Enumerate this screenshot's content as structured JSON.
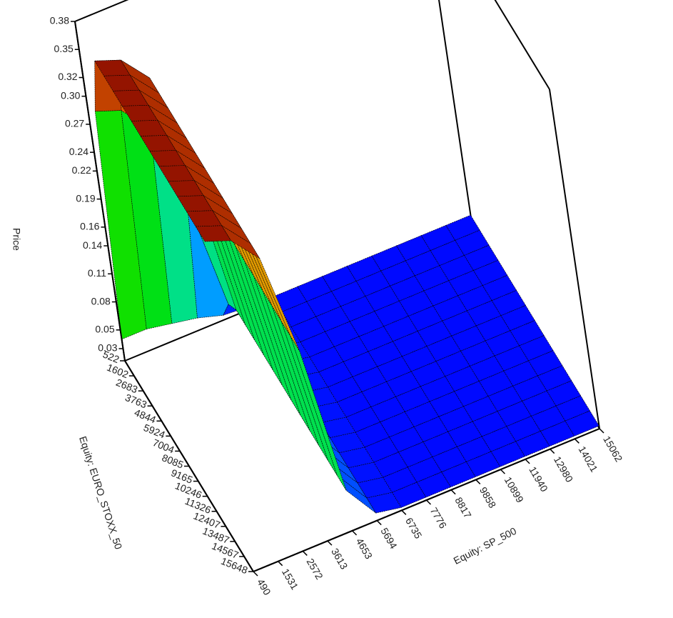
{
  "chart_data": {
    "type": "surface3d",
    "zlabel": "Price",
    "ylabel": "Equity: EURO_STOXX_50",
    "xlabel": "Equity: SP_500",
    "x": [
      490,
      1531,
      2572,
      3613,
      4653,
      5694,
      6735,
      7776,
      8817,
      9858,
      10899,
      11940,
      12980,
      14021,
      15062
    ],
    "y": [
      522,
      1602,
      2683,
      3763,
      4844,
      5924,
      7004,
      8085,
      9165,
      10246,
      11326,
      12407,
      13487,
      14567,
      15648
    ],
    "xlim": [
      490,
      15062
    ],
    "ylim": [
      522,
      15648
    ],
    "zlim": [
      0.017,
      0.38
    ],
    "xticks": [
      490,
      1531,
      2572,
      3613,
      4653,
      5694,
      6735,
      7776,
      8817,
      9858,
      10899,
      11940,
      12980,
      14021,
      15062
    ],
    "yticks": [
      522,
      1602,
      2683,
      3763,
      4844,
      5924,
      7004,
      8085,
      9165,
      10246,
      11326,
      12407,
      13487,
      14567,
      15648
    ],
    "zticks": [
      0.03,
      0.05,
      0.08,
      0.11,
      0.14,
      0.16,
      0.19,
      0.22,
      0.24,
      0.27,
      {
        "value": 0.3,
        "label": "0.30"
      },
      0.32,
      0.35,
      0.38
    ],
    "colormap": [
      "#0000ff",
      "#00e0ff",
      "#00e000",
      "#e0e000",
      "#e06000",
      "#800000"
    ],
    "z": [
      [
        0.04,
        0.04,
        0.035,
        0.03,
        0.022,
        0.02,
        0.02,
        0.02,
        0.02,
        0.02,
        0.02,
        0.02,
        0.02,
        0.02,
        0.02
      ],
      [
        0.3,
        0.29,
        0.26,
        0.17,
        0.05,
        0.023,
        0.02,
        0.02,
        0.02,
        0.02,
        0.02,
        0.02,
        0.02,
        0.02,
        0.02
      ],
      [
        0.37,
        0.36,
        0.33,
        0.22,
        0.06,
        0.025,
        0.02,
        0.02,
        0.02,
        0.02,
        0.02,
        0.02,
        0.02,
        0.02,
        0.02
      ],
      [
        0.37,
        0.36,
        0.33,
        0.22,
        0.06,
        0.025,
        0.02,
        0.02,
        0.02,
        0.02,
        0.02,
        0.02,
        0.02,
        0.02,
        0.02
      ],
      [
        0.37,
        0.36,
        0.33,
        0.22,
        0.06,
        0.025,
        0.02,
        0.02,
        0.02,
        0.02,
        0.02,
        0.02,
        0.02,
        0.02,
        0.02
      ],
      [
        0.37,
        0.36,
        0.33,
        0.22,
        0.06,
        0.025,
        0.02,
        0.02,
        0.02,
        0.02,
        0.02,
        0.02,
        0.02,
        0.02,
        0.02
      ],
      [
        0.37,
        0.36,
        0.33,
        0.22,
        0.06,
        0.025,
        0.02,
        0.02,
        0.02,
        0.02,
        0.02,
        0.02,
        0.02,
        0.02,
        0.02
      ],
      [
        0.37,
        0.36,
        0.33,
        0.22,
        0.06,
        0.025,
        0.02,
        0.02,
        0.02,
        0.02,
        0.02,
        0.02,
        0.02,
        0.02,
        0.02
      ],
      [
        0.37,
        0.36,
        0.33,
        0.22,
        0.06,
        0.025,
        0.02,
        0.02,
        0.02,
        0.02,
        0.02,
        0.02,
        0.02,
        0.02,
        0.02
      ],
      [
        0.37,
        0.36,
        0.33,
        0.22,
        0.06,
        0.025,
        0.02,
        0.02,
        0.02,
        0.02,
        0.02,
        0.02,
        0.02,
        0.02,
        0.02
      ],
      [
        0.37,
        0.36,
        0.33,
        0.22,
        0.06,
        0.025,
        0.02,
        0.02,
        0.02,
        0.02,
        0.02,
        0.02,
        0.02,
        0.02,
        0.02
      ],
      [
        0.37,
        0.36,
        0.33,
        0.22,
        0.06,
        0.025,
        0.02,
        0.02,
        0.02,
        0.02,
        0.02,
        0.02,
        0.02,
        0.02,
        0.02
      ],
      [
        0.37,
        0.36,
        0.33,
        0.22,
        0.06,
        0.025,
        0.02,
        0.02,
        0.02,
        0.02,
        0.02,
        0.02,
        0.02,
        0.02,
        0.02
      ],
      [
        0.37,
        0.36,
        0.33,
        0.22,
        0.06,
        0.025,
        0.02,
        0.02,
        0.02,
        0.02,
        0.02,
        0.02,
        0.02,
        0.02,
        0.02
      ],
      [
        0.37,
        0.36,
        0.33,
        0.22,
        0.06,
        0.025,
        0.02,
        0.02,
        0.02,
        0.02,
        0.02,
        0.02,
        0.02,
        0.02,
        0.02
      ]
    ]
  }
}
